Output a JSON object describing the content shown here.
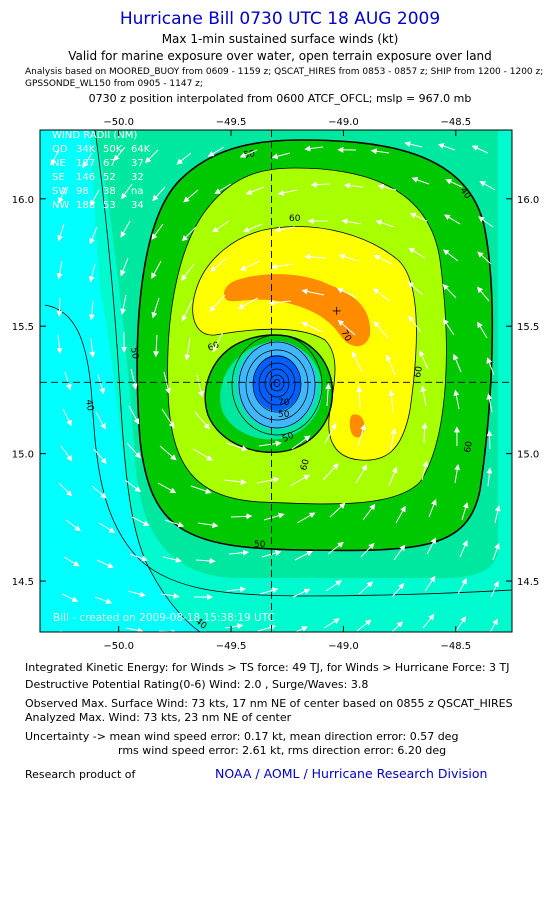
{
  "header": {
    "title": "Hurricane Bill 0730 UTC 18 AUG 2009",
    "subtitle1": "Max 1-min sustained surface winds (kt)",
    "subtitle2": "Valid for marine exposure over water, open terrain exposure over land",
    "sources_line1": "Analysis based on  MOORED_BUOY from 0609 - 1159 z;  QSCAT_HIRES from 0853 - 0857 z;  SHIP from 1200 - 1200 z;",
    "sources_line2": "GPSSONDE_WL150 from 0905 - 1147 z;",
    "position_note": "0730 z position interpolated from 0600 ATCF_OFCL; mslp = 967.0 mb"
  },
  "chart_data": {
    "type": "contour",
    "title": "Hurricane Bill 0730 UTC 18 AUG 2009",
    "variable": "Max 1-min sustained surface winds (kt)",
    "xlim": [
      -50.35,
      -48.25
    ],
    "ylim": [
      14.3,
      16.27
    ],
    "x_ticks": [
      -50.0,
      -49.5,
      -49.0,
      -48.5
    ],
    "y_ticks": [
      14.5,
      15.0,
      15.5,
      16.0
    ],
    "x_tick_labels": [
      "−50.0",
      "−49.5",
      "−49.0",
      "−48.5"
    ],
    "y_tick_labels": [
      "14.5",
      "15.0",
      "15.5",
      "16.0"
    ],
    "center": {
      "lon": -49.32,
      "lat": 15.28
    },
    "max_wind_marker": {
      "lon": -49.03,
      "lat": 15.56
    },
    "contour_levels": [
      40,
      50,
      60,
      70
    ],
    "contour_labels": [
      "50",
      "60",
      "40",
      "60",
      "50",
      "70",
      "60",
      "50",
      "60",
      "50",
      "60",
      "70",
      "40",
      "50",
      "40"
    ],
    "fill_colors": {
      "below_30": "#00ffff",
      "30_40": "#00fad0",
      "40_50": "#00e8a0",
      "50_60": "#00c800",
      "60_70": "#a8ff00",
      "70_80": "#ffff00",
      "80_plus": "#ff8c00",
      "core_light": "#40b8ff",
      "core_dark": "#0060ff"
    },
    "wind_radii_table": {
      "title": "WIND RADII (NM)",
      "header": [
        "QD",
        "34K",
        "50K",
        "64K"
      ],
      "rows": [
        [
          "NE",
          "187",
          "67",
          "37"
        ],
        [
          "SE",
          "146",
          "52",
          "32"
        ],
        [
          "SW",
          "98",
          "38",
          "na"
        ],
        [
          "NW",
          "188",
          "53",
          "34"
        ]
      ]
    },
    "credit": "Bill  - created on  2009-08-18 15:38:19  UTC"
  },
  "stats": {
    "ike": "Integrated Kinetic Energy:  for Winds > TS force: 49 TJ,  for Winds > Hurricane Force: 3 TJ",
    "dpr": "Destructive Potential Rating(0-6)   Wind: 2.0 , Surge/Waves: 3.8",
    "observed_max": "Observed Max. Surface Wind: 73 kts, 17 nm NE of center based on 0855 z QSCAT_HIRES",
    "analyzed_max": "Analyzed Max. Wind: 73 kts, 23 nm NE of center",
    "uncertainty1": "Uncertainty -> mean wind speed error: 0.17 kt,   mean direction error: 0.57 deg",
    "uncertainty2": "rms wind speed error: 2.61 kt,   rms direction error: 6.20 deg"
  },
  "footer": {
    "research_label": "Research product of",
    "org": "NOAA / AOML / Hurricane Research Division"
  }
}
